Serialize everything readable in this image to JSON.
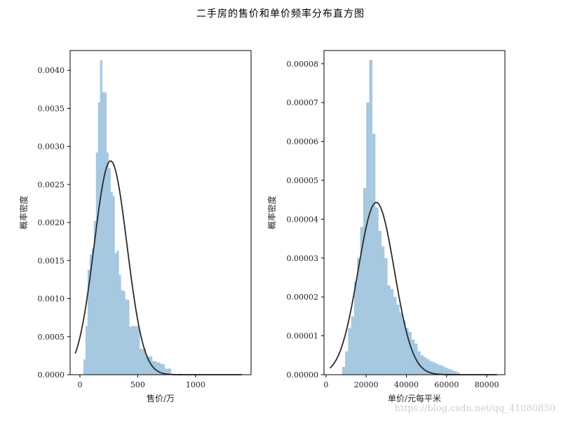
{
  "figure": {
    "title": "二手房的售价和单价频率分布直方图",
    "watermark": "https://blog.csdn.net/qq_41080850"
  },
  "chart_data": [
    {
      "type": "bar",
      "variant": "histogram-with-normal-fit",
      "xlabel": "售价/万",
      "ylabel": "概率密度",
      "xlim": [
        -85,
        1480
      ],
      "ylim": [
        0,
        0.00426
      ],
      "xticks": [
        0,
        500,
        1000
      ],
      "xtick_labels": [
        "0",
        "500",
        "1000"
      ],
      "yticks": [
        0,
        0.0005,
        0.001,
        0.0015,
        0.002,
        0.0025,
        0.003,
        0.0035,
        0.004
      ],
      "ytick_labels": [
        "0.0000",
        "0.0005",
        "0.0010",
        "0.0015",
        "0.0020",
        "0.0025",
        "0.0030",
        "0.0035",
        "0.0040"
      ],
      "bar_color": "#a6c8e0",
      "bin_edges": [
        30,
        48,
        66,
        84,
        102,
        120,
        138,
        156,
        174,
        192,
        210,
        228,
        246,
        264,
        282,
        300,
        318,
        336,
        354,
        372,
        390,
        408,
        426,
        444,
        462,
        480,
        498,
        516,
        534,
        552,
        570,
        588,
        606,
        624,
        642,
        660,
        678,
        696,
        714,
        732,
        750,
        768,
        786
      ],
      "values": [
        0.0002,
        0.00064,
        0.00138,
        0.00158,
        0.00166,
        0.00202,
        0.00292,
        0.00358,
        0.00413,
        0.00371,
        0.00371,
        0.00292,
        0.00271,
        0.0024,
        0.00235,
        0.0016,
        0.00163,
        0.00131,
        0.00111,
        0.0011,
        0.00099,
        0.00098,
        0.00063,
        0.00064,
        0.00064,
        0.00064,
        0.00064,
        0.00034,
        0.00034,
        0.00034,
        0.00024,
        0.00024,
        0.00024,
        0.00018,
        0.00018,
        0.00016,
        0.00016,
        0.00014,
        0.00014,
        8e-05,
        8e-05,
        8e-05
      ],
      "fit": {
        "distribution": "normal",
        "mean": 265,
        "std": 142,
        "x_range": [
          -40,
          1400
        ]
      }
    },
    {
      "type": "bar",
      "variant": "histogram-with-normal-fit",
      "xlabel": "单价/元每平米",
      "ylabel": "概率密度",
      "xlim": [
        -1000,
        89000
      ],
      "ylim": [
        0,
        8.34e-05
      ],
      "xticks": [
        0,
        20000,
        40000,
        60000,
        80000
      ],
      "xtick_labels": [
        "0",
        "20000",
        "40000",
        "60000",
        "80000"
      ],
      "yticks": [
        0,
        1e-05,
        2e-05,
        3e-05,
        4e-05,
        5e-05,
        6e-05,
        7e-05,
        8e-05
      ],
      "ytick_labels": [
        "0.00000",
        "0.00001",
        "0.00002",
        "0.00003",
        "0.00004",
        "0.00005",
        "0.00006",
        "0.00007",
        "0.00008"
      ],
      "bar_color": "#a6c8e0",
      "bin_edges": [
        8000,
        9500,
        11000,
        12500,
        14000,
        15500,
        17000,
        18500,
        20000,
        21500,
        23000,
        24500,
        26000,
        27500,
        29000,
        30500,
        32000,
        33500,
        35000,
        36500,
        38000,
        39500,
        41000,
        42500,
        44000,
        45500,
        47000,
        48500,
        50000,
        51500,
        53000,
        54500,
        56000,
        57500,
        59000,
        60500,
        62000,
        63500,
        65000,
        66500
      ],
      "values": [
        2e-06,
        6e-06,
        1.2e-05,
        1.5e-05,
        2.4e-05,
        3e-05,
        3.8e-05,
        4.8e-05,
        7e-05,
        8.1e-05,
        6.2e-05,
        4.3e-05,
        3.7e-05,
        3.3e-05,
        3e-05,
        2.3e-05,
        2.2e-05,
        2e-05,
        1.8e-05,
        1.6e-05,
        1.4e-05,
        1.2e-05,
        1.1e-05,
        9e-06,
        8e-06,
        6e-06,
        5e-06,
        4.5e-06,
        4e-06,
        3.5e-06,
        3.2e-06,
        2.8e-06,
        2.5e-06,
        2.2e-06,
        1.8e-06,
        1.5e-06,
        1.2e-06,
        9e-07,
        6e-07
      ],
      "fit": {
        "distribution": "normal",
        "mean": 25000,
        "std": 9000,
        "x_range": [
          2000,
          85000
        ]
      }
    }
  ]
}
